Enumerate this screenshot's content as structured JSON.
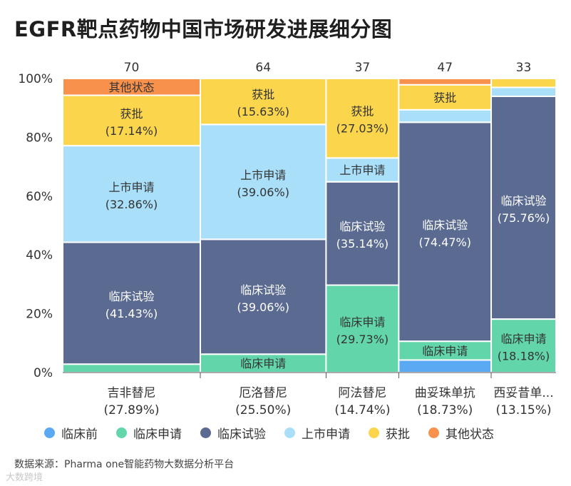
{
  "chart_data": {
    "type": "marimekko",
    "title": "EGFR靶点药物中国市场研发进展细分图",
    "y_ticks": [
      "0%",
      "20%",
      "40%",
      "60%",
      "80%",
      "100%"
    ],
    "ylim": [
      0,
      100
    ],
    "stages": [
      {
        "key": "s1",
        "name": "临床前",
        "color": "#5aa9f2"
      },
      {
        "key": "s2",
        "name": "临床申请",
        "color": "#62d6aa"
      },
      {
        "key": "s3",
        "name": "临床试验",
        "color": "#5a6a91"
      },
      {
        "key": "s4",
        "name": "上市申请",
        "color": "#a9dff9"
      },
      {
        "key": "s5",
        "name": "获批",
        "color": "#fbd64d"
      },
      {
        "key": "s6",
        "name": "其他状态",
        "color": "#f7914b"
      }
    ],
    "columns": [
      {
        "name": "吉非替尼",
        "share_label": "(27.89%)",
        "share": 27.89,
        "count": "70",
        "segments": [
          {
            "stage": "s2",
            "value": 2.86,
            "label": "",
            "pct_label": ""
          },
          {
            "stage": "s3",
            "value": 41.43,
            "label": "临床试验",
            "pct_label": "(41.43%)"
          },
          {
            "stage": "s4",
            "value": 32.86,
            "label": "上市申请",
            "pct_label": "(32.86%)"
          },
          {
            "stage": "s5",
            "value": 17.14,
            "label": "获批",
            "pct_label": "(17.14%)"
          },
          {
            "stage": "s6",
            "value": 5.71,
            "label": "其他状态",
            "pct_label": ""
          }
        ]
      },
      {
        "name": "厄洛替尼",
        "share_label": "(25.50%)",
        "share": 25.5,
        "count": "64",
        "segments": [
          {
            "stage": "s2",
            "value": 6.25,
            "label": "临床申请",
            "pct_label": ""
          },
          {
            "stage": "s3",
            "value": 39.06,
            "label": "临床试验",
            "pct_label": "(39.06%)"
          },
          {
            "stage": "s4",
            "value": 39.06,
            "label": "上市申请",
            "pct_label": "(39.06%)"
          },
          {
            "stage": "s5",
            "value": 15.63,
            "label": "获批",
            "pct_label": "(15.63%)"
          }
        ]
      },
      {
        "name": "阿法替尼",
        "share_label": "(14.74%)",
        "share": 14.74,
        "count": "37",
        "segments": [
          {
            "stage": "s2",
            "value": 29.73,
            "label": "临床申请",
            "pct_label": "(29.73%)"
          },
          {
            "stage": "s3",
            "value": 35.14,
            "label": "临床试验",
            "pct_label": "(35.14%)"
          },
          {
            "stage": "s4",
            "value": 8.11,
            "label": "上市申请",
            "pct_label": ""
          },
          {
            "stage": "s5",
            "value": 27.03,
            "label": "获批",
            "pct_label": "(27.03%)"
          }
        ]
      },
      {
        "name": "曲妥珠单抗",
        "share_label": "(18.73%)",
        "share": 18.73,
        "count": "47",
        "segments": [
          {
            "stage": "s1",
            "value": 4.26,
            "label": "",
            "pct_label": ""
          },
          {
            "stage": "s2",
            "value": 6.38,
            "label": "临床申请",
            "pct_label": ""
          },
          {
            "stage": "s3",
            "value": 74.47,
            "label": "临床试验",
            "pct_label": "(74.47%)"
          },
          {
            "stage": "s4",
            "value": 4.26,
            "label": "",
            "pct_label": ""
          },
          {
            "stage": "s5",
            "value": 8.51,
            "label": "获批",
            "pct_label": ""
          },
          {
            "stage": "s6",
            "value": 2.13,
            "label": "",
            "pct_label": ""
          }
        ]
      },
      {
        "name": "西妥昔单...",
        "share_label": "(13.15%)",
        "share": 13.15,
        "count": "33",
        "segments": [
          {
            "stage": "s2",
            "value": 18.18,
            "label": "临床申请",
            "pct_label": "(18.18%)"
          },
          {
            "stage": "s3",
            "value": 75.76,
            "label": "临床试验",
            "pct_label": "(75.76%)"
          },
          {
            "stage": "s4",
            "value": 3.03,
            "label": "",
            "pct_label": ""
          },
          {
            "stage": "s5",
            "value": 3.03,
            "label": "",
            "pct_label": ""
          }
        ]
      }
    ]
  },
  "source_text": "数据来源：Pharma one智能药物大数据分析平台",
  "watermark_text": "大数跨境"
}
